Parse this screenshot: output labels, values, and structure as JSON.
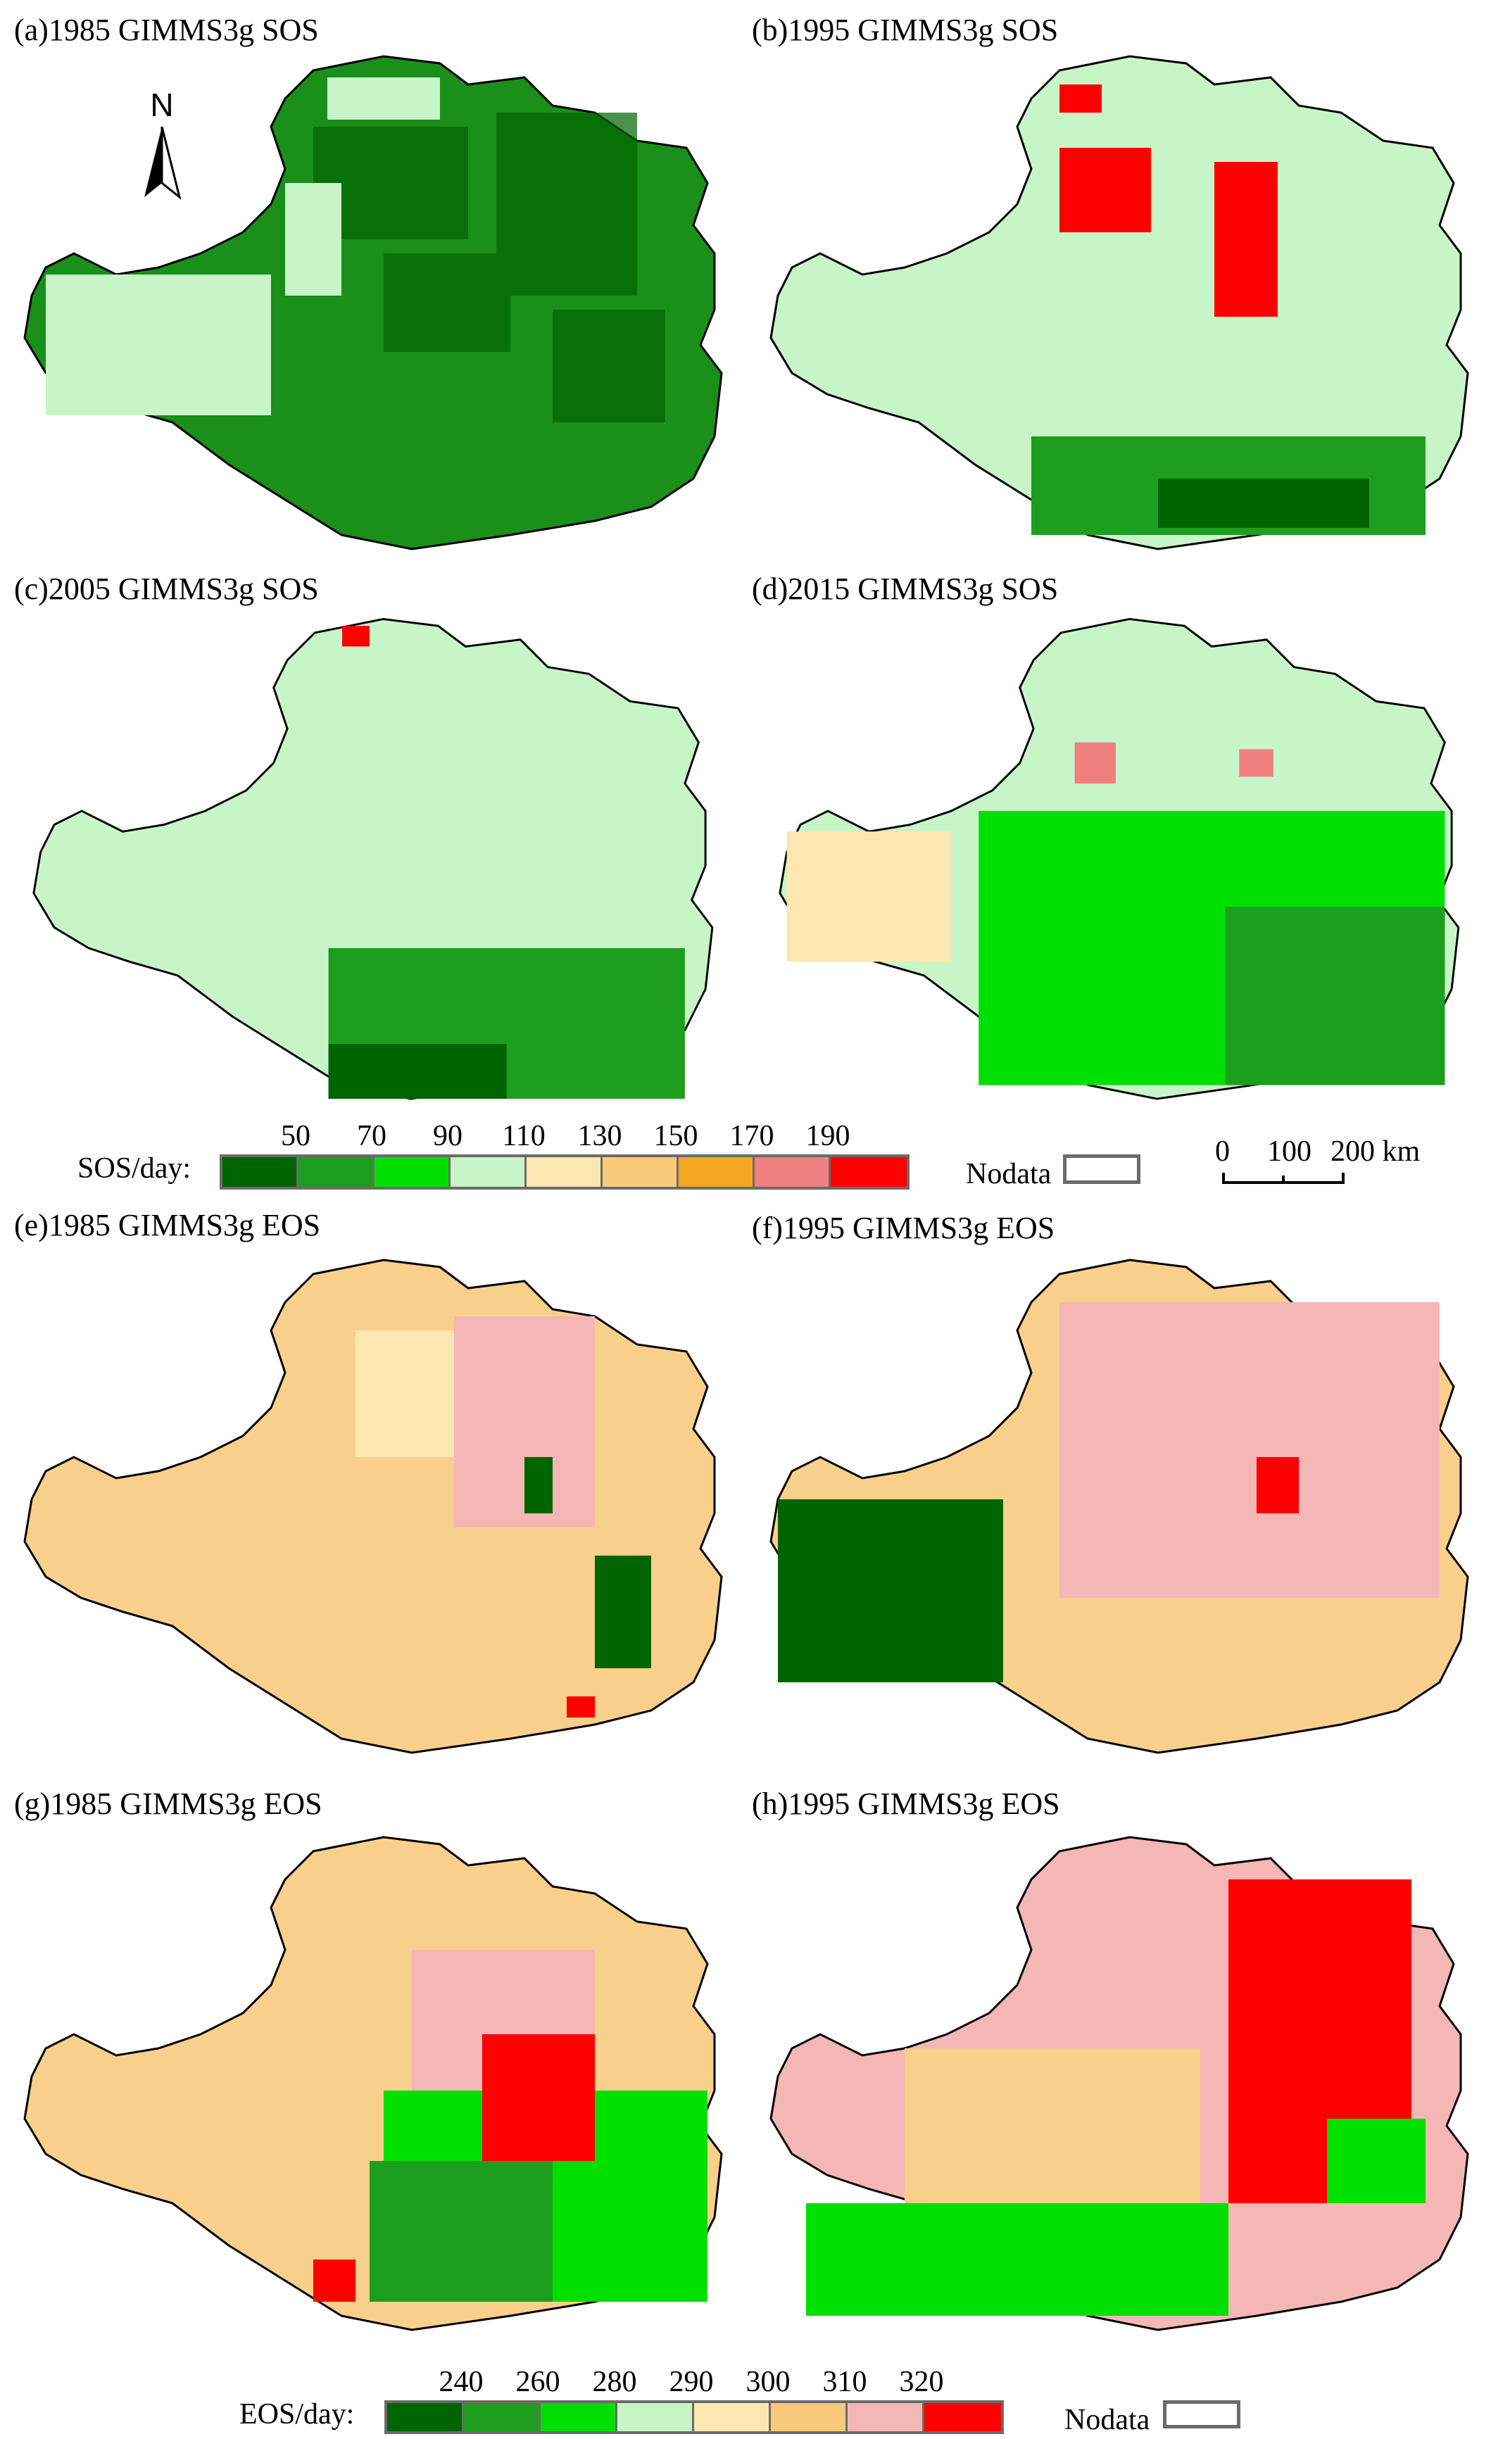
{
  "panels": {
    "a": "(a)1985 GIMMS3g SOS",
    "b": "(b)1995 GIMMS3g SOS",
    "c": "(c)2005 GIMMS3g SOS",
    "d": "(d)2015 GIMMS3g SOS",
    "e": "(e)1985 GIMMS3g EOS",
    "f": "(f)1995 GIMMS3g EOS",
    "g": "(g)1985 GIMMS3g EOS",
    "h": "(h)1995 GIMMS3g EOS"
  },
  "north_label": "N",
  "sos_legend": {
    "label": "SOS/day:",
    "ticks": [
      "50",
      "70",
      "90",
      "110",
      "130",
      "150",
      "170",
      "190"
    ],
    "colors": [
      "#006400",
      "#1e9e1e",
      "#00e000",
      "#c8f5c8",
      "#fde7b0",
      "#f9c97a",
      "#f5a623",
      "#f08080",
      "#ff0000"
    ]
  },
  "eos_legend": {
    "label": "EOS/day:",
    "ticks": [
      "240",
      "260",
      "280",
      "290",
      "300",
      "310",
      "320"
    ],
    "colors": [
      "#006400",
      "#1e9e1e",
      "#00e000",
      "#c8f5c8",
      "#fde7b0",
      "#f9c97a",
      "#f5b6b6",
      "#ff0000"
    ]
  },
  "nodata_label": "Nodata",
  "scalebar": {
    "labels": [
      "0",
      "100",
      "200 km"
    ]
  },
  "map_colors": {
    "a": "#1a8f1a",
    "b": "#c8f5c8",
    "c": "#c8f5c8",
    "d": "#c8f5c8",
    "e": "#f9cf8c",
    "f": "#f7c2b8",
    "g": "#f9cf8c",
    "h": "#f7c2b8"
  }
}
